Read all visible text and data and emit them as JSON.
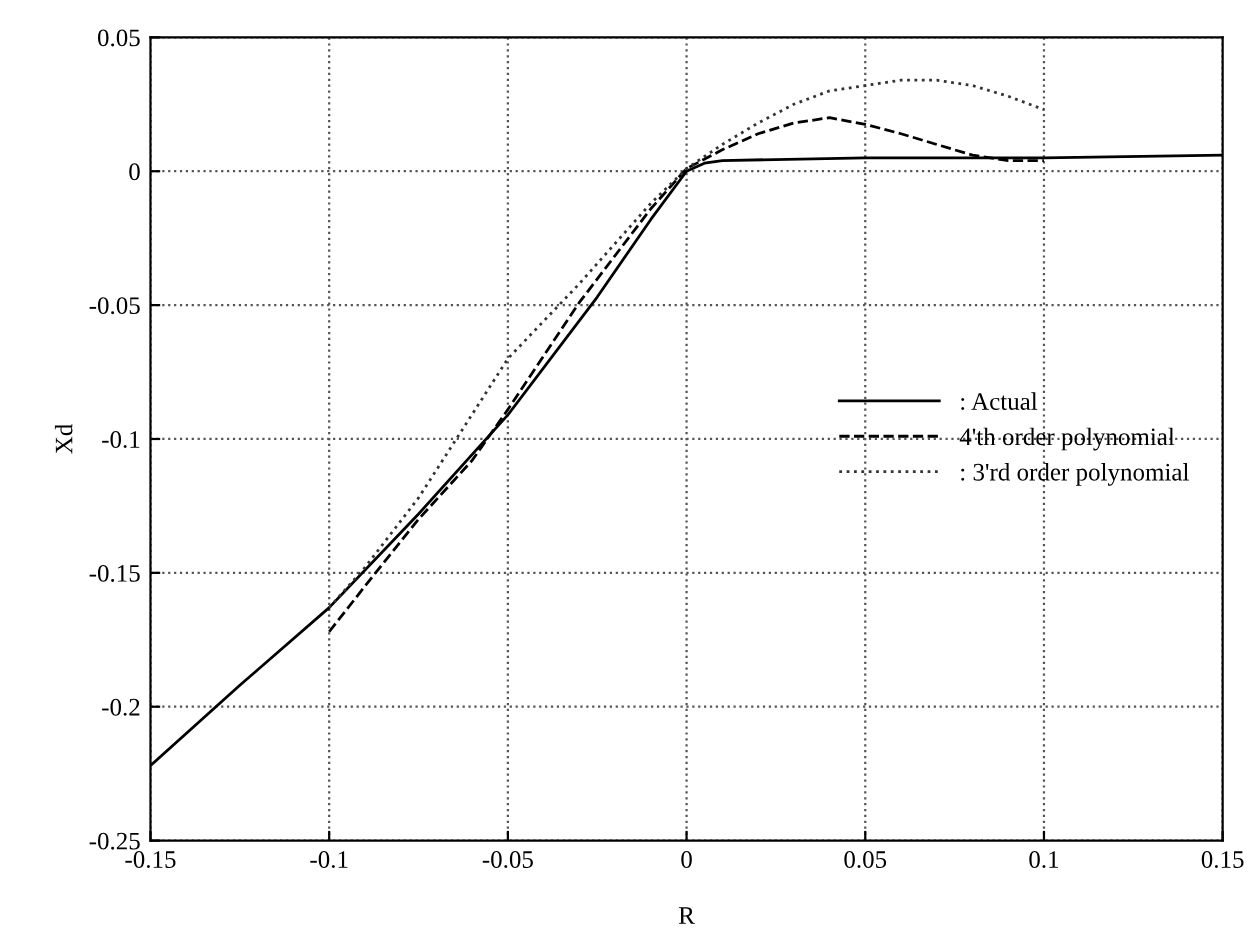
{
  "chart_data": {
    "type": "line",
    "xlabel": "R",
    "ylabel": "Xd",
    "xlim": [
      -0.15,
      0.15
    ],
    "ylim": [
      -0.25,
      0.05
    ],
    "xticks": [
      -0.15,
      -0.1,
      -0.05,
      0,
      0.05,
      0.1,
      0.15
    ],
    "yticks": [
      -0.25,
      -0.2,
      -0.15,
      -0.1,
      -0.05,
      0,
      0.05
    ],
    "grid": true,
    "legend": "right",
    "marker": "none",
    "series": [
      {
        "name": ": Actual",
        "color": "#000000",
        "line_style": "solid",
        "x": [
          -0.15,
          -0.125,
          -0.1,
          -0.075,
          -0.05,
          -0.025,
          -0.01,
          0,
          0.005,
          0.01,
          0.05,
          0.1,
          0.15
        ],
        "values": [
          -0.222,
          -0.192,
          -0.163,
          -0.128,
          -0.091,
          -0.047,
          -0.018,
          0,
          0.003,
          0.004,
          0.005,
          0.005,
          0.006
        ]
      },
      {
        "name": "4'th order polynomial",
        "color": "#000000",
        "line_style": "dashed",
        "x": [
          -0.1,
          -0.09,
          -0.075,
          -0.06,
          -0.05,
          -0.03,
          -0.01,
          0,
          0.01,
          0.02,
          0.03,
          0.04,
          0.05,
          0.06,
          0.07,
          0.08,
          0.09,
          0.1
        ],
        "values": [
          -0.172,
          -0.155,
          -0.13,
          -0.108,
          -0.089,
          -0.049,
          -0.014,
          0.001,
          0.008,
          0.014,
          0.018,
          0.02,
          0.0175,
          0.014,
          0.01,
          0.006,
          0.004,
          0.004
        ]
      },
      {
        "name": ": 3'rd order polynomial",
        "color": "#333333",
        "line_style": "dotted",
        "x": [
          -0.1,
          -0.09,
          -0.075,
          -0.05,
          -0.03,
          -0.02,
          -0.01,
          0,
          0.01,
          0.02,
          0.03,
          0.04,
          0.05,
          0.06,
          0.07,
          0.08,
          0.09,
          0.1
        ],
        "values": [
          -0.163,
          -0.148,
          -0.122,
          -0.07,
          -0.042,
          -0.027,
          -0.012,
          0.001,
          0.01,
          0.018,
          0.025,
          0.03,
          0.032,
          0.034,
          0.034,
          0.032,
          0.028,
          0.023
        ]
      }
    ]
  }
}
